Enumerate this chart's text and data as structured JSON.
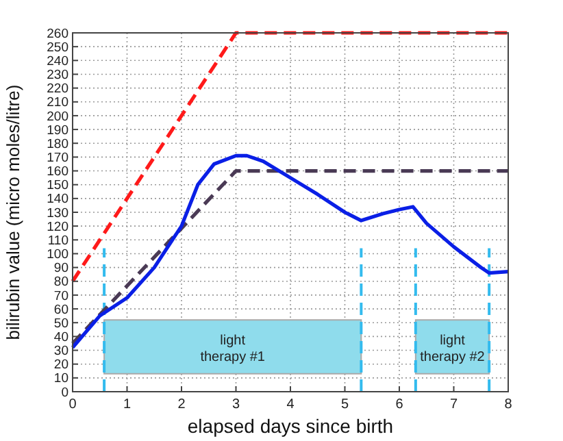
{
  "chart_data": {
    "type": "line",
    "xlabel": "elapsed days since birth",
    "ylabel": "bilirubin value (micro moles/litre)",
    "xlim": [
      0,
      8
    ],
    "xticks": [
      0,
      1,
      2,
      3,
      4,
      5,
      6,
      7,
      8
    ],
    "ylim": [
      0,
      260
    ],
    "yticks": [
      0,
      10,
      20,
      30,
      40,
      50,
      60,
      70,
      80,
      90,
      100,
      110,
      120,
      130,
      140,
      150,
      160,
      170,
      180,
      190,
      200,
      210,
      220,
      230,
      240,
      250,
      260
    ],
    "grid": true,
    "series": [
      {
        "color": "#ff1a1a",
        "line_style": "dashed",
        "x": [
          0,
          3,
          8
        ],
        "values": [
          80,
          260,
          260
        ]
      },
      {
        "color": "#4a3a55",
        "line_style": "dashed",
        "x": [
          0,
          3,
          8
        ],
        "values": [
          35,
          160,
          160
        ]
      },
      {
        "color": "#0a1fe6",
        "line_style": "solid",
        "x": [
          0,
          0.5,
          1,
          1.5,
          2,
          2.3,
          2.6,
          3,
          3.2,
          3.5,
          4,
          4.5,
          5,
          5.3,
          5.7,
          6,
          6.25,
          6.5,
          7,
          7.5,
          7.65,
          8
        ],
        "values": [
          32,
          55,
          68,
          90,
          120,
          150,
          165,
          171,
          171,
          167,
          155,
          143,
          130,
          124,
          129,
          132,
          134,
          122,
          105,
          90,
          86,
          87
        ]
      }
    ],
    "ref_lines": [
      {
        "axis": "x",
        "value": 0.58,
        "color": "#33bbee",
        "line_style": "dashed"
      },
      {
        "axis": "x",
        "value": 5.3,
        "color": "#33bbee",
        "line_style": "dashed"
      },
      {
        "axis": "x",
        "value": 6.3,
        "color": "#33bbee",
        "line_style": "dashed"
      },
      {
        "axis": "x",
        "value": 7.65,
        "color": "#33bbee",
        "line_style": "dashed"
      }
    ],
    "bands": [
      {
        "axis": "x",
        "from": 0.58,
        "to": 5.3,
        "label": "light therapy #1",
        "color": "#8fdcec"
      },
      {
        "axis": "x",
        "from": 6.3,
        "to": 7.65,
        "label": "light therapy #2",
        "color": "#8fdcec"
      }
    ]
  }
}
